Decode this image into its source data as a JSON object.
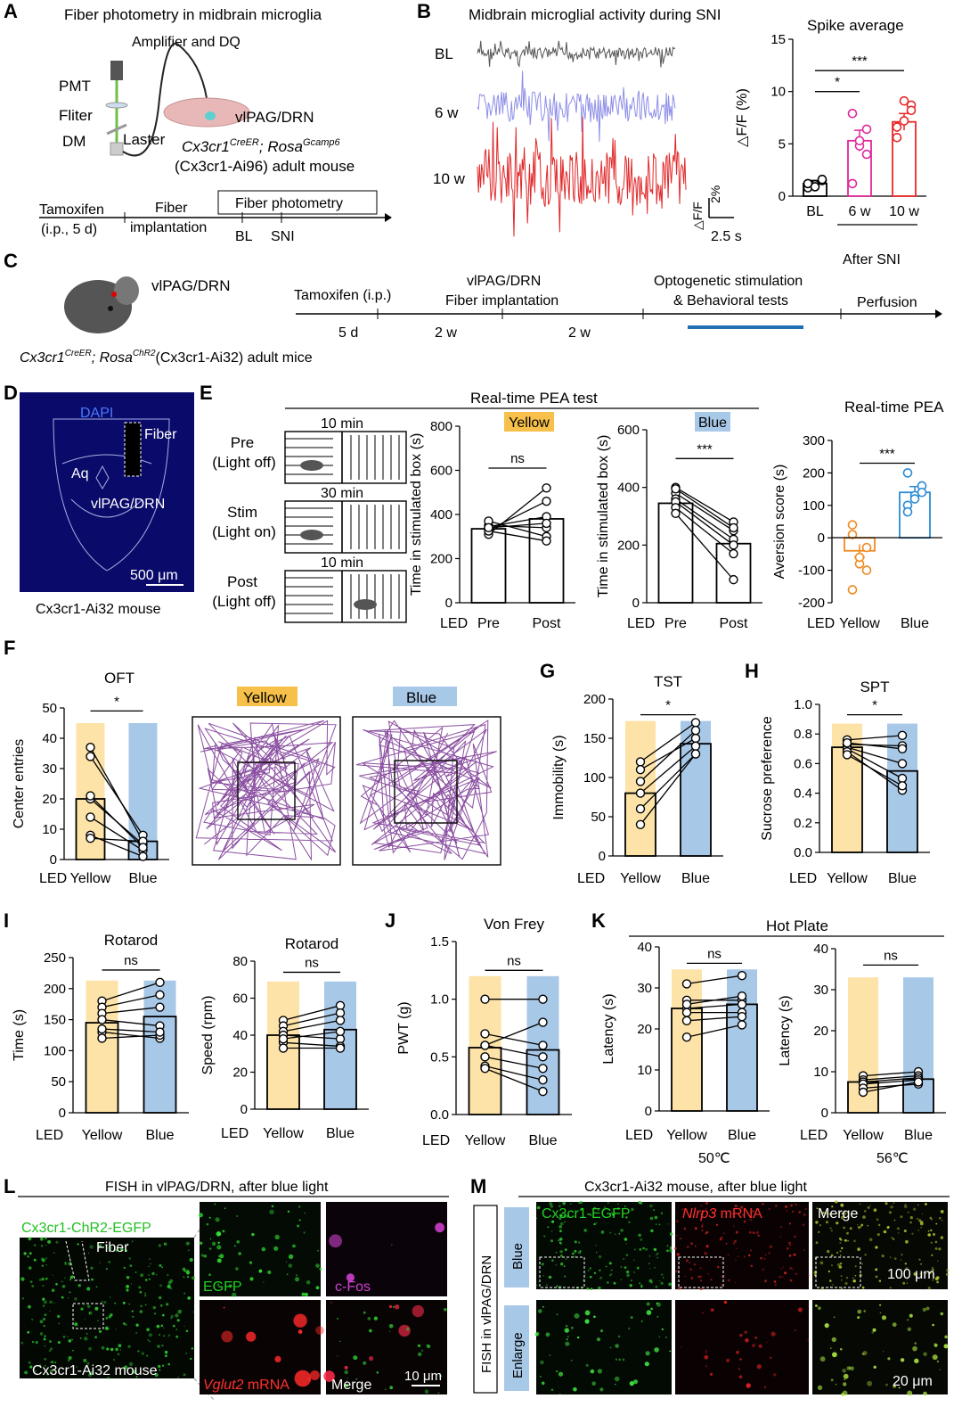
{
  "colors": {
    "yellow": "#fde3a7",
    "blue": "#a8c8e8",
    "pink": "#e0289b",
    "red": "#e8282a",
    "gray": "#555555",
    "microscopy_bg": "#0a0a6a",
    "dot_orange": "#f08a20",
    "dot_blue": "#2a8ad4",
    "track_purple": "#8a4ea0",
    "bar_blue": "#1f6fb5"
  },
  "panelA": {
    "label": "A",
    "title": "Fiber photometry in midbrain microglia",
    "amp": "Amplifier and DQ",
    "pmt": "PMT",
    "filter": "Fliter",
    "dm": "DM",
    "laser": "Laster",
    "region": "vlPAG/DRN",
    "genotype": "Cx3cr1",
    "geno_sup1": "CreER",
    "geno_mid": "; Rosa",
    "geno_sup2": "Gcamp6",
    "mouse": "(Cx3cr1-Ai96) adult mouse",
    "t1a": "Tamoxifen",
    "t1b": "(i.p., 5 d)",
    "t2a": "Fiber",
    "t2b": "implantation",
    "t3": "Fiber photometry",
    "bl": "BL",
    "sni": "SNI"
  },
  "panelB": {
    "label": "B",
    "title": "Midbrain microglial activity during SNI",
    "rows": [
      "BL",
      "6 w",
      "10 w"
    ],
    "scale_y": "2%",
    "scale_y_lbl": "△F/F",
    "scale_x": "2.5 s",
    "spike_title": "Spike average",
    "ylabel": "△F/F (%)",
    "sig1": "*",
    "sig2": "***",
    "after": "After SNI"
  },
  "panelC": {
    "label": "C",
    "region": "vlPAG/DRN",
    "genotype": "Cx3cr1",
    "sup1": "CreER",
    "mid": "; Rosa",
    "sup2": "ChR2",
    "mouse": "(Cx3cr1-Ai32) adult mice",
    "tam": "Tamoxifen  (i.p.)",
    "fib1": "vlPAG/DRN",
    "fib2": "Fiber implantation",
    "opt1": "Optogenetic stimulation",
    "opt2": "& Behavioral tests",
    "perf": "Perfusion",
    "d1": "5 d",
    "d2": "2 w",
    "d3": "2 w"
  },
  "panelD": {
    "label": "D",
    "dapi": "DAPI",
    "fiber": "Fiber",
    "aq": "Aq",
    "region": "vlPAG/DRN",
    "scale": "500 μm",
    "caption": "Cx3cr1-Ai32 mouse"
  },
  "panelE": {
    "label": "E",
    "title": "Real-time PEA test",
    "rows": [
      {
        "t": "10 min",
        "a": "Pre",
        "b": "(Light off)"
      },
      {
        "t": "30 min",
        "a": "Stim",
        "b": "(Light on)"
      },
      {
        "t": "10 min",
        "a": "Post",
        "b": "(Light off)"
      }
    ],
    "ylabel": "Time in stimulated box (s)",
    "yellow": "Yellow",
    "blue": "Blue",
    "ns": "ns",
    "sig": "***",
    "pea_title": "Real-time PEA",
    "pea_ylabel": "Aversion score (s)",
    "led": "LED",
    "pre": "Pre",
    "post": "Post",
    "ylw": "Yellow",
    "blu": "Blue"
  },
  "panelF": {
    "label": "F",
    "title": "OFT",
    "ylabel": "Center entries",
    "sig": "*",
    "yellow": "Yellow",
    "blue": "Blue",
    "led": "LED"
  },
  "panelG": {
    "label": "G",
    "title": "TST",
    "ylabel": "Immobility (s)",
    "sig": "*"
  },
  "panelH": {
    "label": "H",
    "title": "SPT",
    "ylabel": "Sucrose preference",
    "sig": "*"
  },
  "panelI": {
    "label": "I",
    "title1": "Rotarod",
    "title2": "Rotarod",
    "ylabel1": "Time (s)",
    "ylabel2": "Speed (rpm)",
    "ns": "ns"
  },
  "panelJ": {
    "label": "J",
    "title": "Von Frey",
    "ylabel": "PWT (g)",
    "ns": "ns"
  },
  "panelK": {
    "label": "K",
    "title": "Hot Plate",
    "ylabel": "Latency (s)",
    "ns": "ns",
    "t1": "50℃",
    "t2": "56℃"
  },
  "panelL": {
    "label": "L",
    "title": "FISH in vlPAG/DRN, after blue light",
    "chr2": "Cx3cr1-ChR2-EGFP",
    "fiber": "Fiber",
    "caption": "Cx3cr1-Ai32 mouse",
    "egfp": "EGFP",
    "cfos": "c-Fos",
    "vglut": "Vglut2",
    "mrna": " mRNA",
    "merge": "Merge",
    "scale": "10 μm"
  },
  "panelM": {
    "label": "M",
    "title": "Cx3cr1-Ai32 mouse, after blue light",
    "side": "FISH in vlPAG/DRN",
    "blue": "Blue",
    "enlarge": "Enlarge",
    "egfp": "Cx3cr1-EGFP",
    "nlrp": "Nlrp3",
    "mrna": " mRNA",
    "merge": "Merge",
    "s1": "100 μm",
    "s2": "20 μm"
  },
  "chart_data": [
    {
      "type": "bar",
      "title": "Spike average",
      "categories": [
        "BL",
        "6 w",
        "10 w"
      ],
      "values": [
        1.2,
        5.3,
        7.1
      ],
      "ylabel": "△F/F (%)",
      "ylim": [
        0,
        15
      ]
    },
    {
      "type": "bar",
      "title": "Yellow",
      "categories": [
        "Pre",
        "Post"
      ],
      "values": [
        335,
        380
      ],
      "ylabel": "Time in stimulated box (s)",
      "ylim": [
        0,
        800
      ]
    },
    {
      "type": "bar",
      "title": "Blue",
      "categories": [
        "Pre",
        "Post"
      ],
      "values": [
        345,
        205
      ],
      "ylabel": "Time in stimulated box (s)",
      "ylim": [
        0,
        600
      ]
    },
    {
      "type": "bar",
      "title": "Real-time PEA",
      "categories": [
        "Yellow",
        "Blue"
      ],
      "values": [
        -40,
        140
      ],
      "ylabel": "Aversion score (s)",
      "ylim": [
        -200,
        300
      ]
    },
    {
      "type": "bar",
      "title": "OFT",
      "categories": [
        "Yellow",
        "Blue"
      ],
      "values": [
        20,
        6
      ],
      "ylabel": "Center entries",
      "ylim": [
        0,
        50
      ]
    },
    {
      "type": "bar",
      "title": "TST",
      "categories": [
        "Yellow",
        "Blue"
      ],
      "values": [
        80,
        143
      ],
      "ylabel": "Immobility (s)",
      "ylim": [
        0,
        200
      ]
    },
    {
      "type": "bar",
      "title": "SPT",
      "categories": [
        "Yellow",
        "Blue"
      ],
      "values": [
        0.71,
        0.55
      ],
      "ylabel": "Sucrose preference",
      "ylim": [
        0,
        1
      ]
    },
    {
      "type": "bar",
      "title": "Rotarod",
      "categories": [
        "Yellow",
        "Blue"
      ],
      "values": [
        145,
        155
      ],
      "ylabel": "Time (s)",
      "ylim": [
        0,
        250
      ]
    },
    {
      "type": "bar",
      "title": "Rotarod",
      "categories": [
        "Yellow",
        "Blue"
      ],
      "values": [
        40,
        43
      ],
      "ylabel": "Speed (rpm)",
      "ylim": [
        0,
        80
      ]
    },
    {
      "type": "bar",
      "title": "Von Frey",
      "categories": [
        "Yellow",
        "Blue"
      ],
      "values": [
        0.58,
        0.56
      ],
      "ylabel": "PWT (g)",
      "ylim": [
        0,
        1.5
      ]
    },
    {
      "type": "bar",
      "title": "Hot Plate 50℃",
      "categories": [
        "Yellow",
        "Blue"
      ],
      "values": [
        25,
        26
      ],
      "ylabel": "Latency (s)",
      "ylim": [
        0,
        40
      ]
    },
    {
      "type": "bar",
      "title": "Hot Plate 56℃",
      "categories": [
        "Yellow",
        "Blue"
      ],
      "values": [
        7.5,
        8.2
      ],
      "ylabel": "Latency (s)",
      "ylim": [
        0,
        40
      ]
    }
  ]
}
